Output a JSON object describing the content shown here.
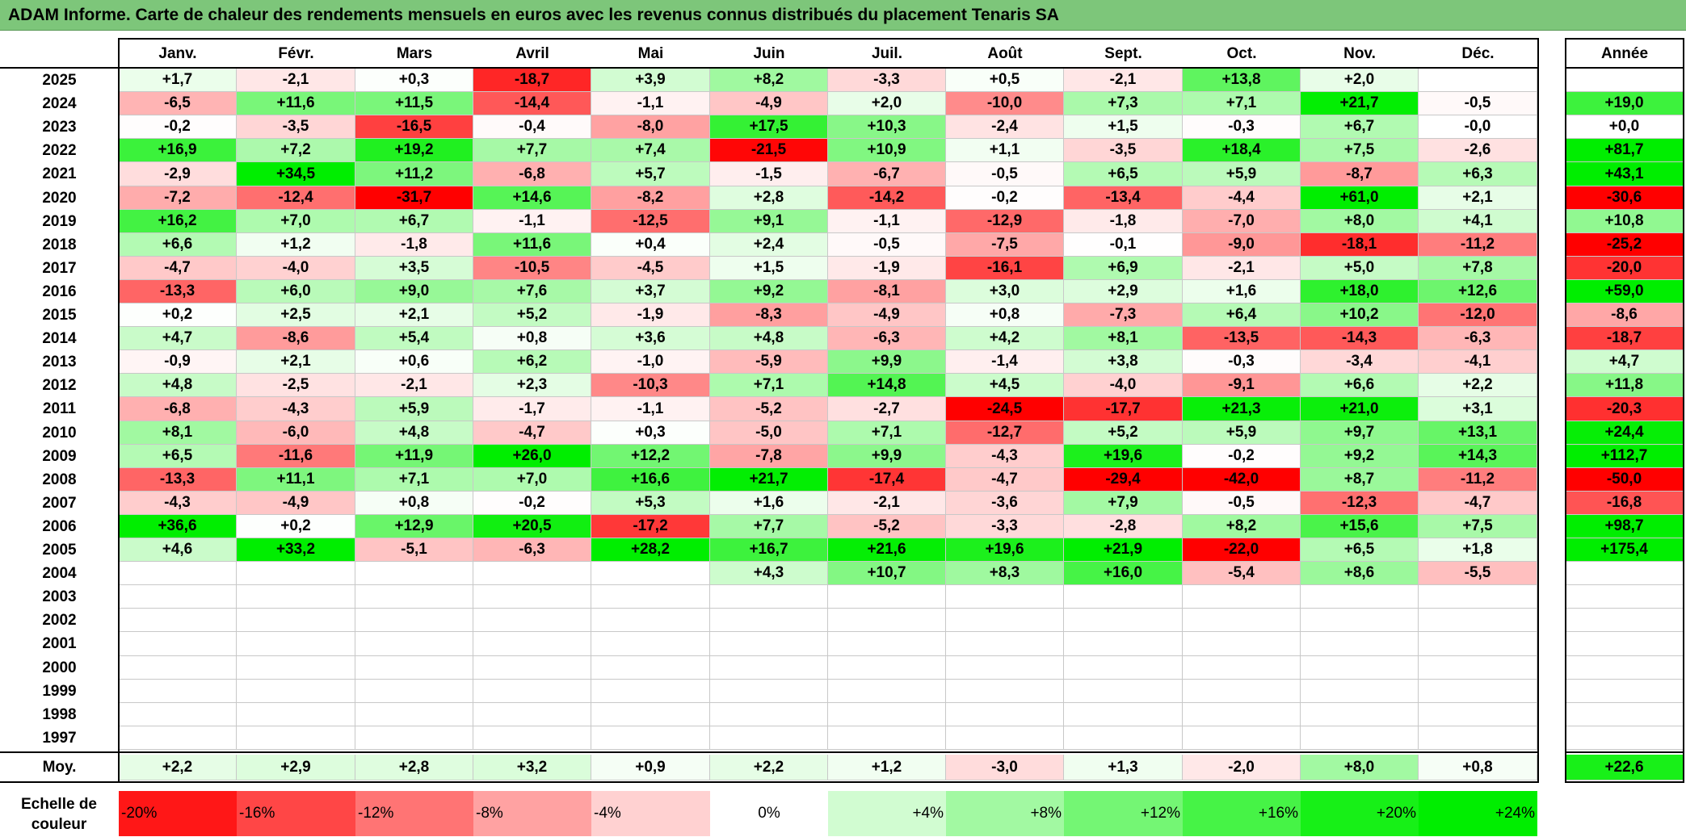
{
  "title": "ADAM Informe. Carte de chaleur des rendements mensuels en euros avec les revenus connus distribués du placement Tenaris SA",
  "chart_data": {
    "type": "heatmap",
    "title": "ADAM Informe. Carte de chaleur des rendements mensuels en euros avec les revenus connus distribués du placement Tenaris SA",
    "months": [
      "Janv.",
      "Févr.",
      "Mars",
      "Avril",
      "Mai",
      "Juin",
      "Juil.",
      "Août",
      "Sept.",
      "Oct.",
      "Nov.",
      "Déc."
    ],
    "annual_header": "Année",
    "rows": [
      {
        "year": "2025",
        "values": [
          "+1,7",
          "-2,1",
          "+0,3",
          "-18,7",
          "+3,9",
          "+8,2",
          "-3,3",
          "+0,5",
          "-2,1",
          "+13,8",
          "+2,0",
          ""
        ],
        "annual": ""
      },
      {
        "year": "2024",
        "values": [
          "-6,5",
          "+11,6",
          "+11,5",
          "-14,4",
          "-1,1",
          "-4,9",
          "+2,0",
          "-10,0",
          "+7,3",
          "+7,1",
          "+21,7",
          "-0,5"
        ],
        "annual": "+19,0"
      },
      {
        "year": "2023",
        "values": [
          "-0,2",
          "-3,5",
          "-16,5",
          "-0,4",
          "-8,0",
          "+17,5",
          "+10,3",
          "-2,4",
          "+1,5",
          "-0,3",
          "+6,7",
          "-0,0"
        ],
        "annual": "+0,0"
      },
      {
        "year": "2022",
        "values": [
          "+16,9",
          "+7,2",
          "+19,2",
          "+7,7",
          "+7,4",
          "-21,5",
          "+10,9",
          "+1,1",
          "-3,5",
          "+18,4",
          "+7,5",
          "-2,6"
        ],
        "annual": "+81,7"
      },
      {
        "year": "2021",
        "values": [
          "-2,9",
          "+34,5",
          "+11,2",
          "-6,8",
          "+5,7",
          "-1,5",
          "-6,7",
          "-0,5",
          "+6,5",
          "+5,9",
          "-8,7",
          "+6,3"
        ],
        "annual": "+43,1"
      },
      {
        "year": "2020",
        "values": [
          "-7,2",
          "-12,4",
          "-31,7",
          "+14,6",
          "-8,2",
          "+2,8",
          "-14,2",
          "-0,2",
          "-13,4",
          "-4,4",
          "+61,0",
          "+2,1"
        ],
        "annual": "-30,6"
      },
      {
        "year": "2019",
        "values": [
          "+16,2",
          "+7,0",
          "+6,7",
          "-1,1",
          "-12,5",
          "+9,1",
          "-1,1",
          "-12,9",
          "-1,8",
          "-7,0",
          "+8,0",
          "+4,1"
        ],
        "annual": "+10,8"
      },
      {
        "year": "2018",
        "values": [
          "+6,6",
          "+1,2",
          "-1,8",
          "+11,6",
          "+0,4",
          "+2,4",
          "-0,5",
          "-7,5",
          "-0,1",
          "-9,0",
          "-18,1",
          "-11,2"
        ],
        "annual": "-25,2"
      },
      {
        "year": "2017",
        "values": [
          "-4,7",
          "-4,0",
          "+3,5",
          "-10,5",
          "-4,5",
          "+1,5",
          "-1,9",
          "-16,1",
          "+6,9",
          "-2,1",
          "+5,0",
          "+7,8"
        ],
        "annual": "-20,0"
      },
      {
        "year": "2016",
        "values": [
          "-13,3",
          "+6,0",
          "+9,0",
          "+7,6",
          "+3,7",
          "+9,2",
          "-8,1",
          "+3,0",
          "+2,9",
          "+1,6",
          "+18,0",
          "+12,6"
        ],
        "annual": "+59,0"
      },
      {
        "year": "2015",
        "values": [
          "+0,2",
          "+2,5",
          "+2,1",
          "+5,2",
          "-1,9",
          "-8,3",
          "-4,9",
          "+0,8",
          "-7,3",
          "+6,4",
          "+10,2",
          "-12,0"
        ],
        "annual": "-8,6"
      },
      {
        "year": "2014",
        "values": [
          "+4,7",
          "-8,6",
          "+5,4",
          "+0,8",
          "+3,6",
          "+4,8",
          "-6,3",
          "+4,2",
          "+8,1",
          "-13,5",
          "-14,3",
          "-6,3"
        ],
        "annual": "-18,7"
      },
      {
        "year": "2013",
        "values": [
          "-0,9",
          "+2,1",
          "+0,6",
          "+6,2",
          "-1,0",
          "-5,9",
          "+9,9",
          "-1,4",
          "+3,8",
          "-0,3",
          "-3,4",
          "-4,1"
        ],
        "annual": "+4,7"
      },
      {
        "year": "2012",
        "values": [
          "+4,8",
          "-2,5",
          "-2,1",
          "+2,3",
          "-10,3",
          "+7,1",
          "+14,8",
          "+4,5",
          "-4,0",
          "-9,1",
          "+6,6",
          "+2,2"
        ],
        "annual": "+11,8"
      },
      {
        "year": "2011",
        "values": [
          "-6,8",
          "-4,3",
          "+5,9",
          "-1,7",
          "-1,1",
          "-5,2",
          "-2,7",
          "-24,5",
          "-17,7",
          "+21,3",
          "+21,0",
          "+3,1"
        ],
        "annual": "-20,3"
      },
      {
        "year": "2010",
        "values": [
          "+8,1",
          "-6,0",
          "+4,8",
          "-4,7",
          "+0,3",
          "-5,0",
          "+7,1",
          "-12,7",
          "+5,2",
          "+5,9",
          "+9,7",
          "+13,1"
        ],
        "annual": "+24,4"
      },
      {
        "year": "2009",
        "values": [
          "+6,5",
          "-11,6",
          "+11,9",
          "+26,0",
          "+12,2",
          "-7,8",
          "+9,9",
          "-4,3",
          "+19,6",
          "-0,2",
          "+9,2",
          "+14,3"
        ],
        "annual": "+112,7"
      },
      {
        "year": "2008",
        "values": [
          "-13,3",
          "+11,1",
          "+7,1",
          "+7,0",
          "+16,6",
          "+21,7",
          "-17,4",
          "-4,7",
          "-29,4",
          "-42,0",
          "+8,7",
          "-11,2"
        ],
        "annual": "-50,0"
      },
      {
        "year": "2007",
        "values": [
          "-4,3",
          "-4,9",
          "+0,8",
          "-0,2",
          "+5,3",
          "+1,6",
          "-2,1",
          "-3,6",
          "+7,9",
          "-0,5",
          "-12,3",
          "-4,7"
        ],
        "annual": "-16,8"
      },
      {
        "year": "2006",
        "values": [
          "+36,6",
          "+0,2",
          "+12,9",
          "+20,5",
          "-17,2",
          "+7,7",
          "-5,2",
          "-3,3",
          "-2,8",
          "+8,2",
          "+15,6",
          "+7,5"
        ],
        "annual": "+98,7"
      },
      {
        "year": "2005",
        "values": [
          "+4,6",
          "+33,2",
          "-5,1",
          "-6,3",
          "+28,2",
          "+16,7",
          "+21,6",
          "+19,6",
          "+21,9",
          "-22,0",
          "+6,5",
          "+1,8"
        ],
        "annual": "+175,4"
      },
      {
        "year": "2004",
        "values": [
          "",
          "",
          "",
          "",
          "",
          "+4,3",
          "+10,7",
          "+8,3",
          "+16,0",
          "-5,4",
          "+8,6",
          "-5,5"
        ],
        "annual": ""
      },
      {
        "year": "2003",
        "values": [
          "",
          "",
          "",
          "",
          "",
          "",
          "",
          "",
          "",
          "",
          "",
          ""
        ],
        "annual": ""
      },
      {
        "year": "2002",
        "values": [
          "",
          "",
          "",
          "",
          "",
          "",
          "",
          "",
          "",
          "",
          "",
          ""
        ],
        "annual": ""
      },
      {
        "year": "2001",
        "values": [
          "",
          "",
          "",
          "",
          "",
          "",
          "",
          "",
          "",
          "",
          "",
          ""
        ],
        "annual": ""
      },
      {
        "year": "2000",
        "values": [
          "",
          "",
          "",
          "",
          "",
          "",
          "",
          "",
          "",
          "",
          "",
          ""
        ],
        "annual": ""
      },
      {
        "year": "1999",
        "values": [
          "",
          "",
          "",
          "",
          "",
          "",
          "",
          "",
          "",
          "",
          "",
          ""
        ],
        "annual": ""
      },
      {
        "year": "1998",
        "values": [
          "",
          "",
          "",
          "",
          "",
          "",
          "",
          "",
          "",
          "",
          "",
          ""
        ],
        "annual": ""
      },
      {
        "year": "1997",
        "values": [
          "",
          "",
          "",
          "",
          "",
          "",
          "",
          "",
          "",
          "",
          "",
          ""
        ],
        "annual": ""
      }
    ],
    "average": {
      "label": "Moy.",
      "values": [
        "+2,2",
        "+2,9",
        "+2,8",
        "+3,2",
        "+0,9",
        "+2,2",
        "+1,2",
        "-3,0",
        "+1,3",
        "-2,0",
        "+8,0",
        "+0,8"
      ],
      "annual": "+22,6"
    },
    "legend": {
      "label_line1": "Echelle de",
      "label_line2": "couleur",
      "steps": [
        {
          "label": "-20%",
          "value": -20
        },
        {
          "label": "-16%",
          "value": -16
        },
        {
          "label": "-12%",
          "value": -12
        },
        {
          "label": "-8%",
          "value": -8
        },
        {
          "label": "-4%",
          "value": -4
        },
        {
          "label": "0%",
          "value": 0
        },
        {
          "label": "+4%",
          "value": 4
        },
        {
          "label": "+8%",
          "value": 8
        },
        {
          "label": "+12%",
          "value": 12
        },
        {
          "label": "+16%",
          "value": 16
        },
        {
          "label": "+20%",
          "value": 20
        },
        {
          "label": "+24%",
          "value": 24
        }
      ]
    },
    "colors": {
      "negative": "#ff0000",
      "neutral": "#ffffff",
      "positive": "#00ee00",
      "title_bar": "#7dc67a"
    }
  }
}
